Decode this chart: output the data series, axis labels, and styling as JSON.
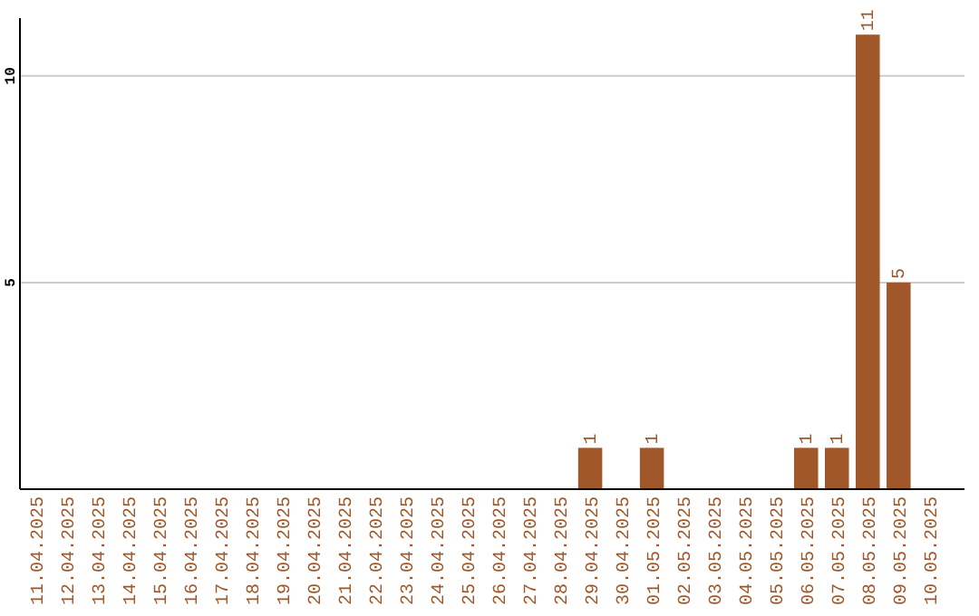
{
  "chart_data": {
    "type": "bar",
    "categories": [
      "11.04.2025",
      "12.04.2025",
      "13.04.2025",
      "14.04.2025",
      "15.04.2025",
      "16.04.2025",
      "17.04.2025",
      "18.04.2025",
      "19.04.2025",
      "20.04.2025",
      "21.04.2025",
      "22.04.2025",
      "23.04.2025",
      "24.04.2025",
      "25.04.2025",
      "26.04.2025",
      "27.04.2025",
      "28.04.2025",
      "29.04.2025",
      "30.04.2025",
      "01.05.2025",
      "02.05.2025",
      "03.05.2025",
      "04.05.2025",
      "05.05.2025",
      "06.05.2025",
      "07.05.2025",
      "08.05.2025",
      "09.05.2025",
      "10.05.2025"
    ],
    "values": [
      0,
      0,
      0,
      0,
      0,
      0,
      0,
      0,
      0,
      0,
      0,
      0,
      0,
      0,
      0,
      0,
      0,
      0,
      1,
      0,
      1,
      0,
      0,
      0,
      0,
      1,
      1,
      11,
      5,
      0
    ],
    "value_labels": [
      null,
      null,
      null,
      null,
      null,
      null,
      null,
      null,
      null,
      null,
      null,
      null,
      null,
      null,
      null,
      null,
      null,
      null,
      "1",
      null,
      "1",
      null,
      null,
      null,
      null,
      "1",
      "1",
      "11",
      "5",
      null
    ],
    "color": "#a0572a",
    "ylim": [
      0,
      11.4
    ],
    "yticks": [
      5,
      10
    ],
    "grid": "y"
  }
}
